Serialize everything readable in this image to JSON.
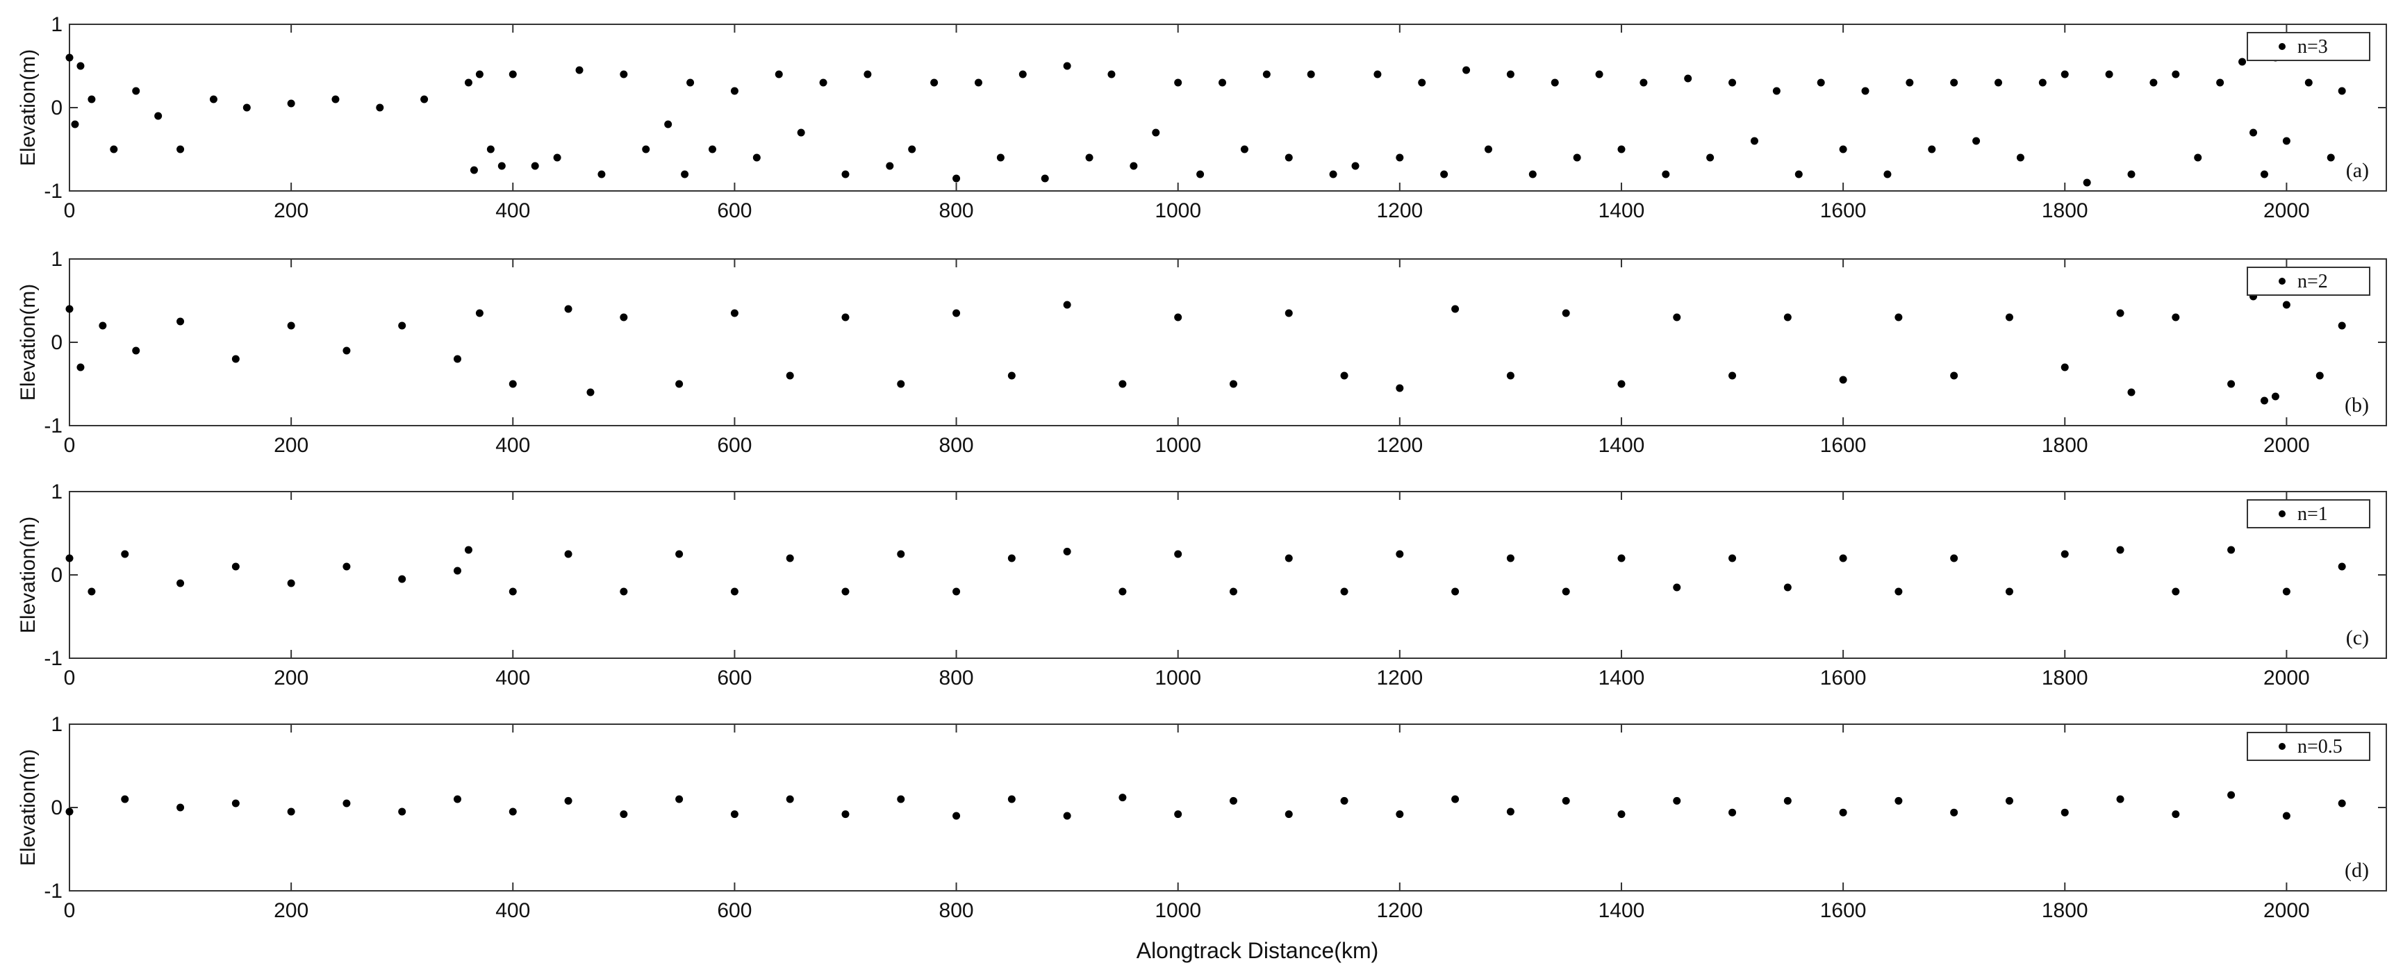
{
  "figure": {
    "xlabel": "Alongtrack Distance(km)"
  },
  "chart_data": [
    {
      "type": "scatter",
      "panel_label": "(a)",
      "legend": "n=3",
      "ylabel": "Elevation(m)",
      "xlim": [
        0,
        2090
      ],
      "ylim": [
        -1,
        1
      ],
      "xticks": [
        0,
        200,
        400,
        600,
        800,
        1000,
        1200,
        1400,
        1600,
        1800,
        2000
      ],
      "yticks": [
        -1,
        0,
        1
      ],
      "grid": false,
      "legend_position": "top-right",
      "series": [
        {
          "x": [
            0,
            5,
            10,
            20,
            40,
            60,
            80,
            100,
            130,
            160,
            200,
            240,
            280,
            320,
            360,
            365,
            370,
            380,
            390,
            400,
            420,
            440,
            460,
            480,
            500,
            520,
            540,
            555,
            560,
            580,
            600,
            620,
            640,
            660,
            680,
            700,
            720,
            740,
            760,
            780,
            800,
            820,
            840,
            860,
            880,
            900,
            920,
            940,
            960,
            980,
            1000,
            1020,
            1040,
            1060,
            1080,
            1100,
            1120,
            1140,
            1160,
            1180,
            1200,
            1220,
            1240,
            1260,
            1280,
            1300,
            1320,
            1340,
            1360,
            1380,
            1400,
            1420,
            1440,
            1460,
            1480,
            1500,
            1520,
            1540,
            1560,
            1580,
            1600,
            1620,
            1640,
            1660,
            1680,
            1700,
            1720,
            1740,
            1760,
            1780,
            1800,
            1820,
            1840,
            1860,
            1880,
            1900,
            1920,
            1940,
            1960,
            1970,
            1980,
            1990,
            2000,
            2020,
            2040,
            2050
          ],
          "y": [
            0.6,
            -0.2,
            0.5,
            0.1,
            -0.5,
            0.2,
            -0.1,
            -0.5,
            0.1,
            0.0,
            0.05,
            0.1,
            0.0,
            0.1,
            0.3,
            -0.75,
            0.4,
            -0.5,
            -0.7,
            0.4,
            -0.7,
            -0.6,
            0.45,
            -0.8,
            0.4,
            -0.5,
            -0.2,
            -0.8,
            0.3,
            -0.5,
            0.2,
            -0.6,
            0.4,
            -0.3,
            0.3,
            -0.8,
            0.4,
            -0.7,
            -0.5,
            0.3,
            -0.85,
            0.3,
            -0.6,
            0.4,
            -0.85,
            0.5,
            -0.6,
            0.4,
            -0.7,
            -0.3,
            0.3,
            -0.8,
            0.3,
            -0.5,
            0.4,
            -0.6,
            0.4,
            -0.8,
            -0.7,
            0.4,
            -0.6,
            0.3,
            -0.8,
            0.45,
            -0.5,
            0.4,
            -0.8,
            0.3,
            -0.6,
            0.4,
            -0.5,
            0.3,
            -0.8,
            0.35,
            -0.6,
            0.3,
            -0.4,
            0.2,
            -0.8,
            0.3,
            -0.5,
            0.2,
            -0.8,
            0.3,
            -0.5,
            0.3,
            -0.4,
            0.3,
            -0.6,
            0.3,
            0.4,
            -0.9,
            0.4,
            -0.8,
            0.3,
            0.4,
            -0.6,
            0.3,
            0.55,
            -0.3,
            -0.8,
            0.6,
            -0.4,
            0.3,
            -0.6,
            0.2
          ]
        }
      ]
    },
    {
      "type": "scatter",
      "panel_label": "(b)",
      "legend": "n=2",
      "ylabel": "Elevation(m)",
      "xlim": [
        0,
        2090
      ],
      "ylim": [
        -1,
        1
      ],
      "xticks": [
        0,
        200,
        400,
        600,
        800,
        1000,
        1200,
        1400,
        1600,
        1800,
        2000
      ],
      "yticks": [
        -1,
        0,
        1
      ],
      "grid": false,
      "legend_position": "top-right",
      "series": [
        {
          "x": [
            0,
            10,
            30,
            60,
            100,
            150,
            200,
            250,
            300,
            350,
            370,
            400,
            450,
            470,
            500,
            550,
            600,
            650,
            700,
            750,
            800,
            850,
            900,
            950,
            1000,
            1050,
            1100,
            1150,
            1200,
            1250,
            1300,
            1350,
            1400,
            1450,
            1500,
            1550,
            1600,
            1650,
            1700,
            1750,
            1800,
            1850,
            1860,
            1900,
            1950,
            1970,
            1980,
            1990,
            2000,
            2030,
            2050
          ],
          "y": [
            0.4,
            -0.3,
            0.2,
            -0.1,
            0.25,
            -0.2,
            0.2,
            -0.1,
            0.2,
            -0.2,
            0.35,
            -0.5,
            0.4,
            -0.6,
            0.3,
            -0.5,
            0.35,
            -0.4,
            0.3,
            -0.5,
            0.35,
            -0.4,
            0.45,
            -0.5,
            0.3,
            -0.5,
            0.35,
            -0.4,
            -0.55,
            0.4,
            -0.4,
            0.35,
            -0.5,
            0.3,
            -0.4,
            0.3,
            -0.45,
            0.3,
            -0.4,
            0.3,
            -0.3,
            0.35,
            -0.6,
            0.3,
            -0.5,
            0.55,
            -0.7,
            -0.65,
            0.45,
            -0.4,
            0.2
          ]
        }
      ]
    },
    {
      "type": "scatter",
      "panel_label": "(c)",
      "legend": "n=1",
      "ylabel": "Elevation(m)",
      "xlim": [
        0,
        2090
      ],
      "ylim": [
        -1,
        1
      ],
      "xticks": [
        0,
        200,
        400,
        600,
        800,
        1000,
        1200,
        1400,
        1600,
        1800,
        2000
      ],
      "yticks": [
        -1,
        0,
        1
      ],
      "grid": false,
      "legend_position": "top-right",
      "series": [
        {
          "x": [
            0,
            20,
            50,
            100,
            150,
            200,
            250,
            300,
            350,
            360,
            400,
            450,
            500,
            550,
            600,
            650,
            700,
            750,
            800,
            850,
            900,
            950,
            1000,
            1050,
            1100,
            1150,
            1200,
            1250,
            1300,
            1350,
            1400,
            1450,
            1500,
            1550,
            1600,
            1650,
            1700,
            1750,
            1800,
            1850,
            1900,
            1950,
            2000,
            2050
          ],
          "y": [
            0.2,
            -0.2,
            0.25,
            -0.1,
            0.1,
            -0.1,
            0.1,
            -0.05,
            0.05,
            0.3,
            -0.2,
            0.25,
            -0.2,
            0.25,
            -0.2,
            0.2,
            -0.2,
            0.25,
            -0.2,
            0.2,
            0.28,
            -0.2,
            0.25,
            -0.2,
            0.2,
            -0.2,
            0.25,
            -0.2,
            0.2,
            -0.2,
            0.2,
            -0.15,
            0.2,
            -0.15,
            0.2,
            -0.2,
            0.2,
            -0.2,
            0.25,
            0.3,
            -0.2,
            0.3,
            -0.2,
            0.1
          ]
        }
      ]
    },
    {
      "type": "scatter",
      "panel_label": "(d)",
      "legend": "n=0.5",
      "ylabel": "Elevation(m)",
      "xlim": [
        0,
        2090
      ],
      "ylim": [
        -1,
        1
      ],
      "xticks": [
        0,
        200,
        400,
        600,
        800,
        1000,
        1200,
        1400,
        1600,
        1800,
        2000
      ],
      "yticks": [
        -1,
        0,
        1
      ],
      "grid": false,
      "legend_position": "top-right",
      "series": [
        {
          "x": [
            0,
            50,
            100,
            150,
            200,
            250,
            300,
            350,
            400,
            450,
            500,
            550,
            600,
            650,
            700,
            750,
            800,
            850,
            900,
            950,
            1000,
            1050,
            1100,
            1150,
            1200,
            1250,
            1300,
            1350,
            1400,
            1450,
            1500,
            1550,
            1600,
            1650,
            1700,
            1750,
            1800,
            1850,
            1900,
            1950,
            2000,
            2050
          ],
          "y": [
            -0.05,
            0.1,
            0.0,
            0.05,
            -0.05,
            0.05,
            -0.05,
            0.1,
            -0.05,
            0.08,
            -0.08,
            0.1,
            -0.08,
            0.1,
            -0.08,
            0.1,
            -0.1,
            0.1,
            -0.1,
            0.12,
            -0.08,
            0.08,
            -0.08,
            0.08,
            -0.08,
            0.1,
            -0.05,
            0.08,
            -0.08,
            0.08,
            -0.06,
            0.08,
            -0.06,
            0.08,
            -0.06,
            0.08,
            -0.06,
            0.1,
            -0.08,
            0.15,
            -0.1,
            0.05
          ]
        }
      ]
    }
  ]
}
